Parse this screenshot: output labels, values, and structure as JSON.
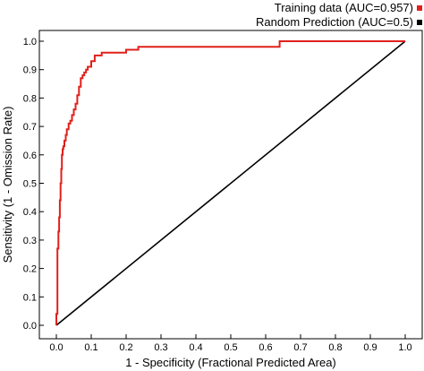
{
  "chart_data": {
    "type": "line",
    "title": "",
    "xlabel": "1 - Specificity (Fractional Predicted Area)",
    "ylabel": "Sensitivity (1 - Omission Rate)",
    "xlim": [
      0,
      1
    ],
    "ylim": [
      0,
      1
    ],
    "x_ticks": [
      "0.0",
      "0.1",
      "0.2",
      "0.3",
      "0.4",
      "0.5",
      "0.6",
      "0.7",
      "0.8",
      "0.9",
      "1.0"
    ],
    "y_ticks": [
      "0.0",
      "0.1",
      "0.2",
      "0.3",
      "0.4",
      "0.5",
      "0.6",
      "0.7",
      "0.8",
      "0.9",
      "1.0"
    ],
    "grid": false,
    "legend_position": "top-right",
    "series": [
      {
        "name": "Training data (AUC=0.957)",
        "color": "#e0201b",
        "x": [
          0.0,
          0.0,
          0.003,
          0.003,
          0.006,
          0.006,
          0.008,
          0.008,
          0.01,
          0.01,
          0.012,
          0.012,
          0.014,
          0.014,
          0.016,
          0.016,
          0.018,
          0.018,
          0.02,
          0.02,
          0.023,
          0.023,
          0.027,
          0.027,
          0.03,
          0.03,
          0.035,
          0.035,
          0.04,
          0.04,
          0.045,
          0.045,
          0.05,
          0.05,
          0.055,
          0.055,
          0.06,
          0.06,
          0.065,
          0.065,
          0.07,
          0.07,
          0.075,
          0.075,
          0.08,
          0.08,
          0.085,
          0.085,
          0.09,
          0.09,
          0.1,
          0.1,
          0.11,
          0.11,
          0.13,
          0.13,
          0.16,
          0.16,
          0.2,
          0.2,
          0.235,
          0.235,
          0.64,
          0.64,
          1.0
        ],
        "y": [
          0.0,
          0.04,
          0.04,
          0.27,
          0.27,
          0.33,
          0.33,
          0.38,
          0.38,
          0.44,
          0.44,
          0.5,
          0.5,
          0.55,
          0.55,
          0.6,
          0.6,
          0.62,
          0.62,
          0.63,
          0.63,
          0.65,
          0.65,
          0.67,
          0.67,
          0.69,
          0.69,
          0.71,
          0.71,
          0.72,
          0.72,
          0.74,
          0.74,
          0.76,
          0.76,
          0.78,
          0.78,
          0.81,
          0.81,
          0.84,
          0.84,
          0.87,
          0.87,
          0.88,
          0.88,
          0.89,
          0.89,
          0.9,
          0.9,
          0.91,
          0.91,
          0.93,
          0.93,
          0.95,
          0.95,
          0.96,
          0.96,
          0.96,
          0.96,
          0.97,
          0.97,
          0.98,
          0.98,
          1.0,
          1.0
        ]
      },
      {
        "name": "Random Prediction (AUC=0.5)",
        "color": "#000000",
        "x": [
          0,
          1
        ],
        "y": [
          0,
          1
        ]
      }
    ]
  }
}
